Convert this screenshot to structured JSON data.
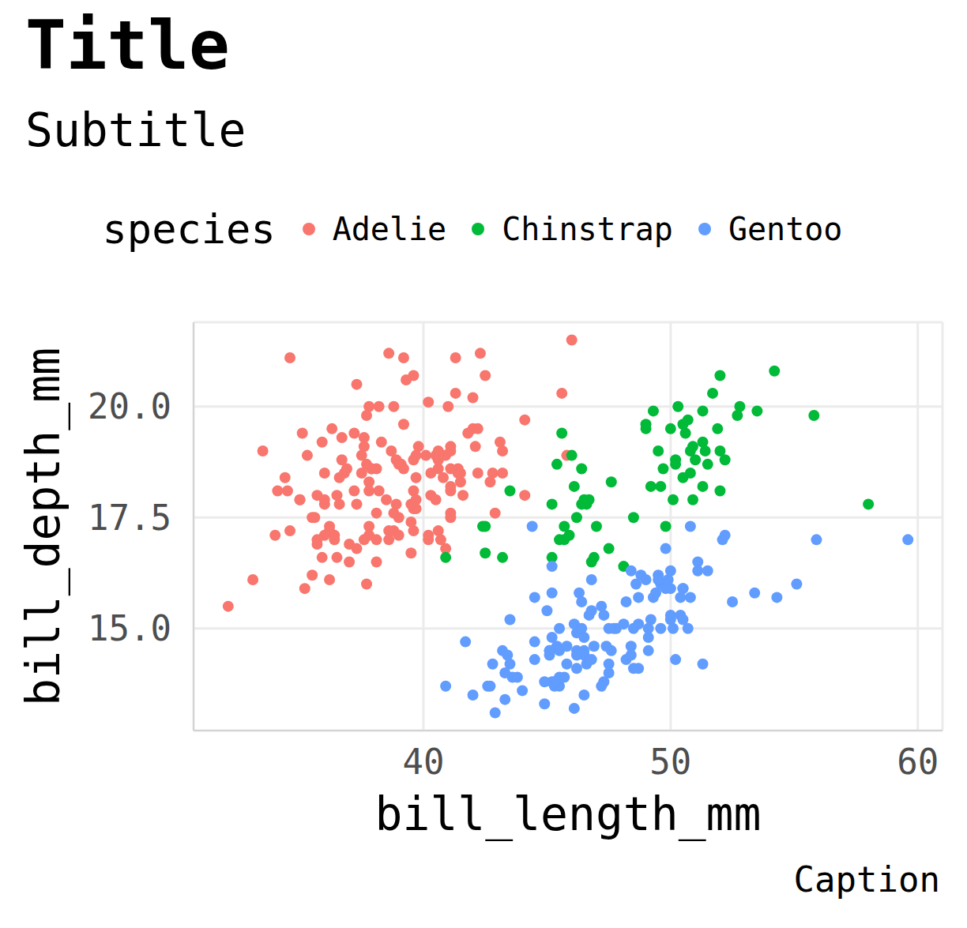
{
  "chart_data": {
    "type": "scatter",
    "title": "Title",
    "subtitle": "Subtitle",
    "caption": "Caption",
    "x_label": "bill_length_mm",
    "y_label": "bill_depth_mm",
    "legend_title": "species",
    "legend": "top",
    "grid": true,
    "marker": "circle",
    "xlim": [
      30.7,
      61.0
    ],
    "ylim": [
      12.7,
      21.9
    ],
    "xticks": [
      40,
      50,
      60
    ],
    "yticks": [
      {
        "value": 15,
        "label": "15.0"
      },
      17.5,
      {
        "value": 20,
        "label": "20.0"
      }
    ],
    "series": [
      {
        "name": "Adelie",
        "color": "#F8766D",
        "x": [
          39.1,
          39.5,
          40.3,
          36.7,
          39.3,
          38.9,
          39.2,
          34.1,
          42,
          37.8,
          37.8,
          41.1,
          38.6,
          34.6,
          36.6,
          38.7,
          42.5,
          34.4,
          46,
          37.8,
          37.7,
          35.9,
          38.2,
          38.8,
          35.3,
          40.6,
          40.5,
          37.9,
          40.5,
          39.5,
          37.2,
          39.5,
          40.9,
          36.4,
          39.2,
          38.8,
          42.2,
          37.6,
          39.8,
          36.5,
          40.8,
          36,
          44.1,
          37,
          39.6,
          41.1,
          37.5,
          36,
          42.3,
          39.6,
          40.1,
          35,
          42,
          34.5,
          41.4,
          39,
          40.6,
          36.5,
          37.6,
          35.7,
          41.3,
          37.6,
          41.1,
          36.4,
          41.6,
          35.5,
          41.1,
          35.9,
          41.8,
          33.5,
          39.7,
          39.6,
          45.8,
          35.5,
          42.8,
          40.9,
          37.2,
          36.2,
          42.1,
          34.6,
          42.9,
          36.7,
          35.1,
          37.3,
          41.3,
          36.3,
          36.9,
          38.3,
          38.9,
          35.7,
          41.1,
          34,
          39.6,
          36.2,
          40.8,
          38.1,
          40.3,
          33.1,
          43.2,
          35,
          41,
          37.7,
          37.8,
          37.9,
          39.7,
          38.6,
          38.2,
          38.1,
          43.2,
          38.1,
          45.6,
          39.7,
          42.2,
          39.6,
          42.7,
          38.6,
          37.3,
          35.7,
          41.1,
          36.2,
          37.7,
          40.2,
          41.4,
          35.2,
          40.6,
          38.8,
          41.5,
          39,
          44.1,
          38.5,
          43.1,
          36.8,
          37.5,
          38.1,
          41.1,
          35.6,
          40.2,
          37,
          39.7,
          40.2,
          40.6,
          32.1,
          40.7,
          37.3,
          39,
          39.2,
          36.6,
          36,
          37.8,
          36,
          41.5
        ],
        "values": [
          18.7,
          17.4,
          18,
          19.3,
          20.6,
          17.8,
          19.6,
          18.1,
          20.2,
          17.1,
          17.3,
          17.6,
          21.2,
          21.1,
          17.8,
          19,
          20.7,
          18.4,
          21.5,
          18.3,
          18.7,
          19.2,
          18.1,
          17.2,
          18.9,
          18.6,
          17.9,
          18.6,
          18.9,
          16.7,
          18.1,
          17.8,
          18.9,
          17,
          21.1,
          20,
          18.5,
          19.3,
          19.1,
          18,
          18.4,
          18.5,
          19.7,
          16.9,
          18.8,
          19,
          18.9,
          17.9,
          21.2,
          17.7,
          18.9,
          17.9,
          19.5,
          18.1,
          18.6,
          17.5,
          18.8,
          16.6,
          19.1,
          16.9,
          21.1,
          17,
          18.2,
          17.1,
          18,
          16.2,
          19.1,
          16.6,
          19.4,
          19,
          18.4,
          17.2,
          18.9,
          17.5,
          18.5,
          16.8,
          19.4,
          16.1,
          19.1,
          17.2,
          17.6,
          18.8,
          19.4,
          17.8,
          20.3,
          19.5,
          18.6,
          19.2,
          18.8,
          18,
          18.1,
          17.1,
          18.1,
          17.3,
          18.9,
          18.6,
          18.5,
          16.1,
          18.5,
          17.9,
          20,
          16,
          20,
          18.6,
          18.9,
          17.2,
          20,
          17,
          19,
          16.5,
          20.3,
          17.7,
          19.5,
          20.7,
          18.3,
          17,
          20.5,
          17,
          18.6,
          17.2,
          19.8,
          17,
          18.5,
          15.9,
          19,
          17.6,
          18.3,
          17.1,
          18,
          17.9,
          19.2,
          18.5,
          18.5,
          17.6,
          17.5,
          17.5,
          20.1,
          16.5,
          17.9,
          17.1,
          17.2,
          15.5,
          17,
          16.8,
          18.7,
          18.6,
          18.4,
          17.8,
          18.1,
          17.1,
          18.5
        ]
      },
      {
        "name": "Chinstrap",
        "color": "#00BA38",
        "x": [
          46.5,
          50,
          51.3,
          45.4,
          52.7,
          45.2,
          46.1,
          51.3,
          46,
          51.3,
          46.6,
          51.7,
          47,
          52,
          45.9,
          50.5,
          50.3,
          58,
          46.4,
          49.2,
          42.4,
          48.5,
          43.2,
          50.6,
          46.7,
          52,
          50.5,
          49.5,
          46.4,
          52.8,
          40.9,
          54.2,
          42.5,
          51,
          49.7,
          47.5,
          47.6,
          52,
          46.9,
          53.5,
          49,
          46.2,
          50.9,
          45.5,
          50.9,
          50.8,
          50.1,
          49,
          51.5,
          49.8,
          48.1,
          51.4,
          45.7,
          50.7,
          42.5,
          52.2,
          45.2,
          49.3,
          50.2,
          45.6,
          51.9,
          46.8,
          45.7,
          55.8,
          43.5,
          49.6,
          50.8,
          50.2
        ],
        "values": [
          17.9,
          19.5,
          19.2,
          18.7,
          19.8,
          17.8,
          18.2,
          18.2,
          18.9,
          19.9,
          17.8,
          20.3,
          17.3,
          18.1,
          17.1,
          19.6,
          20,
          17.8,
          18.6,
          18.2,
          17.3,
          17.5,
          16.6,
          19.4,
          17.9,
          19,
          18.4,
          19,
          17.8,
          20,
          16.6,
          20.8,
          16.7,
          18.8,
          18.6,
          16.8,
          18.3,
          20.7,
          16.6,
          19.9,
          19.5,
          17.5,
          19.1,
          17,
          17.9,
          18.5,
          17.9,
          19.6,
          18.7,
          17.3,
          16.4,
          19,
          17.3,
          19.7,
          17.3,
          18.8,
          16.6,
          19.9,
          18.8,
          19.4,
          19.5,
          16.5,
          17,
          19.8,
          18.1,
          18.2,
          19,
          18.7
        ]
      },
      {
        "name": "Gentoo",
        "color": "#619CFF",
        "x": [
          46.1,
          50,
          48.7,
          50,
          47.6,
          46.5,
          45.4,
          46.7,
          43.3,
          46.8,
          40.9,
          49,
          45.5,
          48.4,
          45.8,
          49.3,
          42,
          49.2,
          46.2,
          48.7,
          50.2,
          45.1,
          46.5,
          46.3,
          42.9,
          46.1,
          44.5,
          47.8,
          48.2,
          50,
          47.3,
          42.8,
          45.1,
          59.6,
          49.1,
          48.4,
          42.6,
          44.4,
          44,
          48.7,
          42.7,
          49.6,
          45.3,
          49.6,
          50.5,
          43.6,
          45.5,
          50.5,
          44.9,
          45.2,
          46.6,
          48.5,
          45.1,
          50.1,
          46.5,
          45,
          43.8,
          45.5,
          43.2,
          50.4,
          45.3,
          46.2,
          45.7,
          54.3,
          45.8,
          49.8,
          46.2,
          49.5,
          43.5,
          50.7,
          47.7,
          46.4,
          48.2,
          46.5,
          46.4,
          48.6,
          47.5,
          51.1,
          45.2,
          45.2,
          49.1,
          52.5,
          47.4,
          50,
          44.9,
          50.8,
          43.4,
          51.3,
          47.5,
          52.1,
          47.5,
          52.2,
          45.5,
          49.5,
          44.5,
          50.8,
          49.4,
          46.9,
          48.4,
          51.1,
          48.5,
          55.9,
          47.2,
          49.1,
          47.3,
          46.8,
          41.7,
          53.4,
          43.3,
          48.1,
          50.5,
          49.8,
          43.5,
          51.5,
          46.2,
          55.1,
          44.5,
          48.8,
          47.2,
          46.8,
          50.4,
          45.2,
          49.9
        ],
        "values": [
          13.2,
          16.3,
          14.1,
          15.2,
          14.5,
          13.5,
          14.6,
          15.3,
          13.4,
          15.4,
          13.7,
          16.1,
          13.7,
          14.6,
          14.6,
          15.7,
          13.5,
          15.2,
          14.5,
          15.1,
          14.3,
          14.5,
          14.5,
          15.8,
          13.1,
          15.1,
          14.3,
          15,
          14.3,
          15.3,
          15.3,
          14.2,
          14.5,
          17,
          14.8,
          16.3,
          13.7,
          17.3,
          13.6,
          15.7,
          13.7,
          16,
          13.7,
          15,
          15.9,
          13.9,
          13.9,
          15.9,
          13.3,
          15.8,
          14.2,
          14.1,
          14.4,
          15,
          14.4,
          15.4,
          13.9,
          15,
          14.5,
          15.3,
          13.8,
          14.9,
          13.9,
          15.7,
          14.2,
          16.8,
          14.4,
          16.2,
          14.2,
          15,
          15,
          15.6,
          15.6,
          14.8,
          15,
          16,
          14.2,
          16.3,
          13.8,
          16.4,
          14.5,
          15.6,
          14.6,
          15.9,
          13.8,
          17.3,
          14.4,
          14.2,
          14,
          17,
          15,
          17.1,
          14.5,
          16.1,
          14.7,
          15.7,
          15.8,
          14.6,
          14.4,
          16.5,
          15,
          17,
          15.5,
          15,
          13.8,
          16.1,
          14.7,
          15.8,
          14,
          15.1,
          15.2,
          15.9,
          15.2,
          16.3,
          14.1,
          16,
          15.7,
          16.2,
          13.7,
          14.3,
          15.7,
          14.8,
          16.1
        ]
      }
    ]
  }
}
